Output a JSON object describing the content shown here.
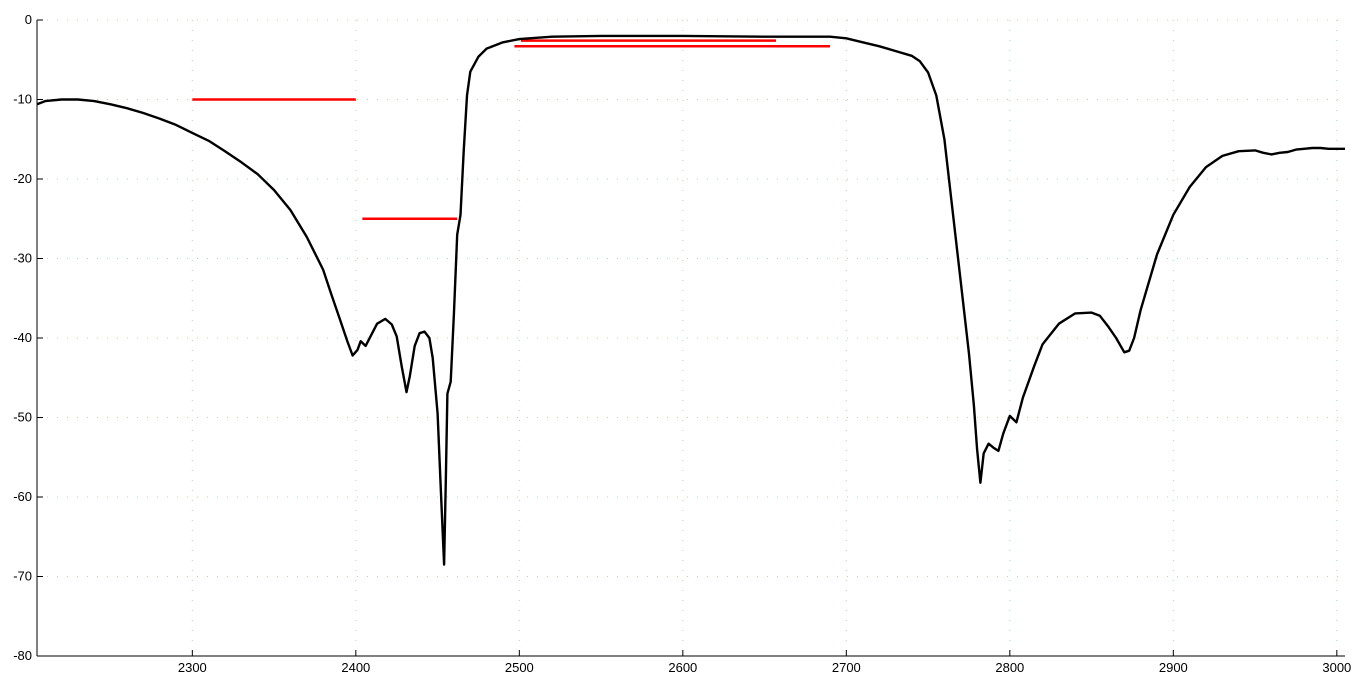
{
  "chart_data": {
    "type": "line",
    "title": "",
    "xlabel": "",
    "ylabel": "",
    "xlim": [
      2205,
      3005
    ],
    "ylim": [
      -80,
      0
    ],
    "xticks": [
      2300,
      2400,
      2500,
      2600,
      2700,
      2800,
      2900,
      3000
    ],
    "yticks": [
      0,
      -10,
      -20,
      -30,
      -40,
      -50,
      -60,
      -70,
      -80
    ],
    "grid": "dotted",
    "colors": {
      "line": "#000000",
      "mask": "#ff0000",
      "grid": "#a8dca8",
      "axis": "#000000"
    },
    "series": [
      {
        "values": [
          [
            2205,
            -10.6
          ],
          [
            2210,
            -10.2
          ],
          [
            2220,
            -10.0
          ],
          [
            2230,
            -10.0
          ],
          [
            2240,
            -10.2
          ],
          [
            2250,
            -10.6
          ],
          [
            2260,
            -11.1
          ],
          [
            2270,
            -11.7
          ],
          [
            2280,
            -12.4
          ],
          [
            2290,
            -13.2
          ],
          [
            2300,
            -14.2
          ],
          [
            2310,
            -15.2
          ],
          [
            2320,
            -16.5
          ],
          [
            2330,
            -17.9
          ],
          [
            2340,
            -19.4
          ],
          [
            2350,
            -21.4
          ],
          [
            2360,
            -23.9
          ],
          [
            2370,
            -27.3
          ],
          [
            2380,
            -31.4
          ],
          [
            2385,
            -34.5
          ],
          [
            2390,
            -37.5
          ],
          [
            2395,
            -40.5
          ],
          [
            2398,
            -42.2
          ],
          [
            2401,
            -41.5
          ],
          [
            2403,
            -40.4
          ],
          [
            2406,
            -41.0
          ],
          [
            2409,
            -39.8
          ],
          [
            2413,
            -38.2
          ],
          [
            2418,
            -37.6
          ],
          [
            2422,
            -38.3
          ],
          [
            2425,
            -39.8
          ],
          [
            2428,
            -43.5
          ],
          [
            2431,
            -46.8
          ],
          [
            2433,
            -44.8
          ],
          [
            2436,
            -41.0
          ],
          [
            2439,
            -39.4
          ],
          [
            2442,
            -39.2
          ],
          [
            2445,
            -40.0
          ],
          [
            2447,
            -42.5
          ],
          [
            2450,
            -49.5
          ],
          [
            2452,
            -59.0
          ],
          [
            2454,
            -68.5
          ],
          [
            2455,
            -58.0
          ],
          [
            2456,
            -47.0
          ],
          [
            2458,
            -45.5
          ],
          [
            2460,
            -37.0
          ],
          [
            2462,
            -27.0
          ],
          [
            2464,
            -24.5
          ],
          [
            2466,
            -16.5
          ],
          [
            2468,
            -9.5
          ],
          [
            2470,
            -6.5
          ],
          [
            2475,
            -4.6
          ],
          [
            2480,
            -3.6
          ],
          [
            2490,
            -2.8
          ],
          [
            2500,
            -2.4
          ],
          [
            2520,
            -2.1
          ],
          [
            2550,
            -2.0
          ],
          [
            2600,
            -2.0
          ],
          [
            2650,
            -2.1
          ],
          [
            2690,
            -2.1
          ],
          [
            2700,
            -2.3
          ],
          [
            2710,
            -2.8
          ],
          [
            2720,
            -3.3
          ],
          [
            2730,
            -3.9
          ],
          [
            2740,
            -4.5
          ],
          [
            2745,
            -5.2
          ],
          [
            2750,
            -6.6
          ],
          [
            2755,
            -9.5
          ],
          [
            2760,
            -15.0
          ],
          [
            2765,
            -24.0
          ],
          [
            2770,
            -33.0
          ],
          [
            2775,
            -42.0
          ],
          [
            2778,
            -48.5
          ],
          [
            2780,
            -54.0
          ],
          [
            2782,
            -58.2
          ],
          [
            2784,
            -54.5
          ],
          [
            2787,
            -53.3
          ],
          [
            2790,
            -53.8
          ],
          [
            2793,
            -54.2
          ],
          [
            2796,
            -52.0
          ],
          [
            2800,
            -49.8
          ],
          [
            2804,
            -50.6
          ],
          [
            2808,
            -47.5
          ],
          [
            2815,
            -43.5
          ],
          [
            2820,
            -40.8
          ],
          [
            2830,
            -38.2
          ],
          [
            2840,
            -36.9
          ],
          [
            2850,
            -36.8
          ],
          [
            2855,
            -37.2
          ],
          [
            2860,
            -38.5
          ],
          [
            2865,
            -40.0
          ],
          [
            2870,
            -41.8
          ],
          [
            2873,
            -41.6
          ],
          [
            2876,
            -40.0
          ],
          [
            2880,
            -36.5
          ],
          [
            2890,
            -29.5
          ],
          [
            2900,
            -24.5
          ],
          [
            2910,
            -21.0
          ],
          [
            2920,
            -18.5
          ],
          [
            2930,
            -17.1
          ],
          [
            2940,
            -16.5
          ],
          [
            2950,
            -16.4
          ],
          [
            2955,
            -16.7
          ],
          [
            2960,
            -16.9
          ],
          [
            2965,
            -16.7
          ],
          [
            2970,
            -16.6
          ],
          [
            2975,
            -16.3
          ],
          [
            2980,
            -16.2
          ],
          [
            2985,
            -16.1
          ],
          [
            2990,
            -16.1
          ],
          [
            2995,
            -16.2
          ],
          [
            3005,
            -16.2
          ]
        ]
      }
    ],
    "limit_lines": [
      {
        "x": [
          2300,
          2400
        ],
        "y": -10
      },
      {
        "x": [
          2404,
          2462
        ],
        "y": -25
      },
      {
        "x": [
          2501,
          2657
        ],
        "y": -2.6
      },
      {
        "x": [
          2497,
          2690
        ],
        "y": -3.3
      }
    ]
  }
}
